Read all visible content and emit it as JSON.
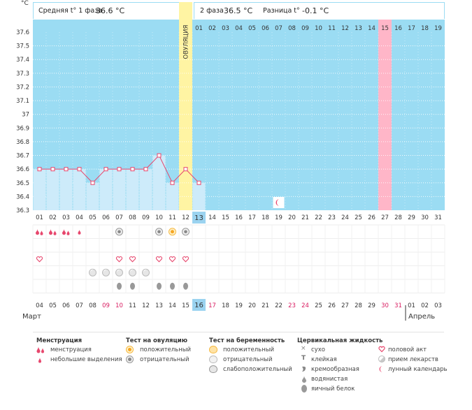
{
  "header": {
    "y_unit": "°C",
    "phase1_label": "Средняя t° 1 фаза",
    "phase1_value": "36.6 °C",
    "phase2_label": "2 фаза",
    "phase2_value": "36.5 °C",
    "diff_label": "Разница t°",
    "diff_value": "-0.1 °C",
    "ovulation_label": "ОВУЛЯЦИЯ"
  },
  "chart_data": {
    "type": "line",
    "x": [
      "01",
      "02",
      "03",
      "04",
      "05",
      "06",
      "07",
      "08",
      "09",
      "10",
      "11",
      "12",
      "13"
    ],
    "values": [
      36.6,
      36.6,
      36.6,
      36.6,
      36.5,
      36.6,
      36.6,
      36.6,
      36.6,
      36.7,
      36.5,
      36.6,
      36.5
    ],
    "ylim": [
      36.3,
      37.6
    ],
    "y_ticks": [
      "37.6",
      "37.5",
      "37.4",
      "37.3",
      "37.2",
      "37.1",
      "37",
      "36.9",
      "36.8",
      "36.7",
      "36.6",
      "36.5",
      "36.4",
      "36.3"
    ],
    "ovulation_day": 12,
    "today_day": 13,
    "highlight_day": 27,
    "grid": true
  },
  "phase2_days": [
    "01",
    "02",
    "03",
    "04",
    "05",
    "06",
    "07",
    "08",
    "09",
    "10",
    "11",
    "12",
    "13",
    "14",
    "15",
    "16",
    "17",
    "18",
    "19"
  ],
  "cycle_days": [
    "01",
    "02",
    "03",
    "04",
    "05",
    "06",
    "07",
    "08",
    "09",
    "10",
    "11",
    "12",
    "13",
    "14",
    "15",
    "16",
    "17",
    "18",
    "19",
    "20",
    "21",
    "22",
    "23",
    "24",
    "25",
    "26",
    "27",
    "28",
    "29",
    "30",
    "31"
  ],
  "dates": {
    "days": [
      "04",
      "05",
      "06",
      "07",
      "08",
      "09",
      "10",
      "11",
      "12",
      "13",
      "14",
      "15",
      "16",
      "17",
      "18",
      "19",
      "20",
      "21",
      "22",
      "23",
      "24",
      "25",
      "26",
      "27",
      "28",
      "29",
      "30",
      "31",
      "01",
      "02",
      "03"
    ],
    "red_days": [
      "09",
      "10",
      "17",
      "23",
      "24",
      "30",
      "31"
    ],
    "today_date": "16",
    "month_left": "Март",
    "month_right": "Апрель"
  },
  "colors": {
    "chart_bg": "#9bdcf3",
    "grid": "#ffffff",
    "bar_fill": "#cdebfa",
    "line": "#e7476d",
    "ovulation": "#fff4a3",
    "highlight": "#ffb6c8",
    "today": "#9bd3f0",
    "weekend": "#d81b60"
  },
  "legend": {
    "menstruation": {
      "title": "Менструация",
      "items": [
        {
          "icon": "menstruation-drops-icon",
          "label": "менструация"
        },
        {
          "icon": "small-drop-icon",
          "label": "небольшие выделения"
        }
      ]
    },
    "ovulation_test": {
      "title": "Тест на овуляцию",
      "items": [
        {
          "icon": "ovulation-positive-icon",
          "label": "положительный"
        },
        {
          "icon": "ovulation-negative-icon",
          "label": "отрицательный"
        }
      ]
    },
    "pregnancy_test": {
      "title": "Тест на беременность",
      "items": [
        {
          "icon": "pregnancy-positive-icon",
          "label": "положительный"
        },
        {
          "icon": "pregnancy-negative-icon",
          "label": "отрицательный"
        },
        {
          "icon": "pregnancy-weak-icon",
          "label": "слабоположительный"
        }
      ]
    },
    "cervical": {
      "title": "Цервикальная жидкость",
      "items": [
        {
          "icon": "dry-icon",
          "label": "сухо"
        },
        {
          "icon": "sticky-icon",
          "label": "клейкая"
        },
        {
          "icon": "creamy-icon",
          "label": "кремообразная"
        },
        {
          "icon": "watery-icon",
          "label": "водянистая"
        },
        {
          "icon": "egg-white-icon",
          "label": "яичный белок"
        }
      ]
    },
    "other": {
      "items": [
        {
          "icon": "heart-icon",
          "label": "половой акт"
        },
        {
          "icon": "pill-icon",
          "label": "прием лекарств"
        },
        {
          "icon": "moon-icon",
          "label": "лунный календарь"
        }
      ]
    }
  },
  "marks": {
    "menstruation_days": [
      1,
      2,
      3
    ],
    "small_drop_days": [
      4
    ],
    "ovulation_negative_days": [
      7,
      10,
      12
    ],
    "ovulation_positive_days": [
      11
    ],
    "heart_days": [
      1,
      7,
      8,
      10,
      11,
      12
    ],
    "pill_days": [
      5,
      6,
      7,
      8,
      9
    ],
    "egg_white_days": [
      7,
      8,
      10,
      11,
      12
    ],
    "moon_day": 19
  }
}
